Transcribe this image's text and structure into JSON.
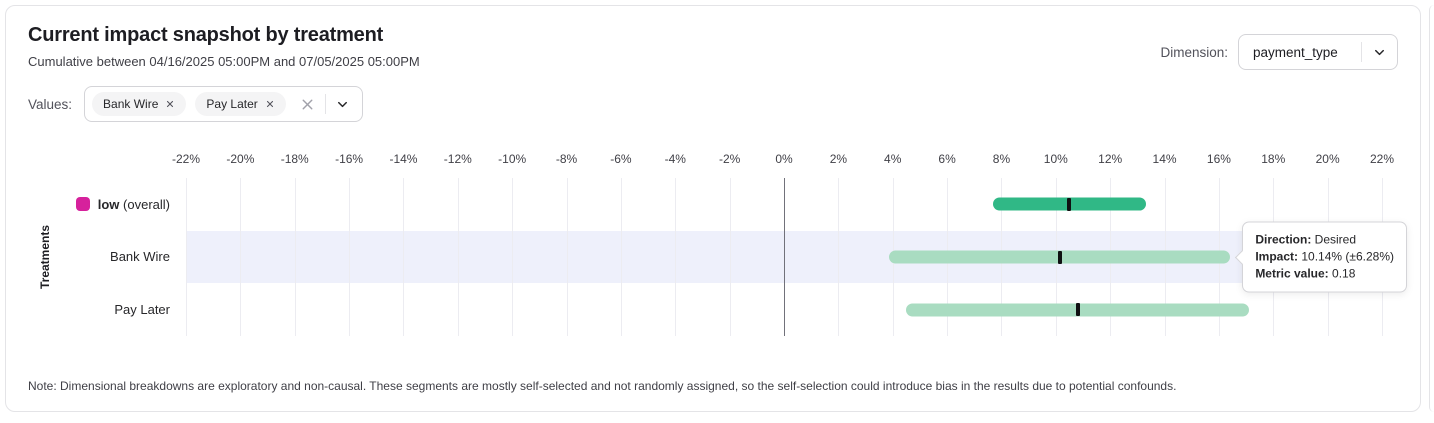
{
  "header": {
    "title": "Current impact snapshot by treatment",
    "subtitle": "Cumulative between 04/16/2025 05:00PM and 07/05/2025 05:00PM",
    "dimension_label": "Dimension:",
    "dimension_value": "payment_type"
  },
  "filters": {
    "label": "Values:",
    "chips": [
      {
        "label": "Bank Wire"
      },
      {
        "label": "Pay Later"
      }
    ]
  },
  "chart_data": {
    "type": "bar",
    "variant": "horizontal-interval",
    "ylabel": "Treatments",
    "xlim": [
      -22,
      22
    ],
    "x_ticks": [
      -22,
      -20,
      -18,
      -16,
      -14,
      -12,
      -10,
      -8,
      -6,
      -4,
      -2,
      0,
      2,
      4,
      6,
      8,
      10,
      12,
      14,
      16,
      18,
      20,
      22
    ],
    "x_tick_suffix": "%",
    "grid": true,
    "rows": [
      {
        "label": "low",
        "label_note": "(overall)",
        "swatch_color": "#d6219c",
        "bar_color": "#30b886",
        "ci_low": 7.7,
        "impact": 10.5,
        "ci_high": 13.3,
        "highlighted": false
      },
      {
        "label": "Bank Wire",
        "bar_color": "#a9dcc1",
        "ci_low": 3.86,
        "impact": 10.14,
        "ci_high": 16.42,
        "highlighted": true
      },
      {
        "label": "Pay Later",
        "bar_color": "#a9dcc1",
        "ci_low": 4.5,
        "impact": 10.8,
        "ci_high": 17.1,
        "highlighted": false
      }
    ]
  },
  "tooltip": {
    "direction_label": "Direction:",
    "direction_value": "Desired",
    "impact_label": "Impact:",
    "impact_value": "10.14% (±6.28%)",
    "metric_label": "Metric value:",
    "metric_value": "0.18"
  },
  "note": "Note: Dimensional breakdowns are exploratory and non-causal. These segments are mostly self-selected and not randomly assigned, so the self-selection could introduce bias in the results due to potential confounds.",
  "colors": {
    "accent_magenta": "#d6219c",
    "overall_bar": "#30b886",
    "segment_bar": "#a9dcc1",
    "row_highlight": "#eef0fb",
    "zero_line": "#71717a",
    "gridline": "#ececf1",
    "card_border": "#e4e4e7"
  }
}
